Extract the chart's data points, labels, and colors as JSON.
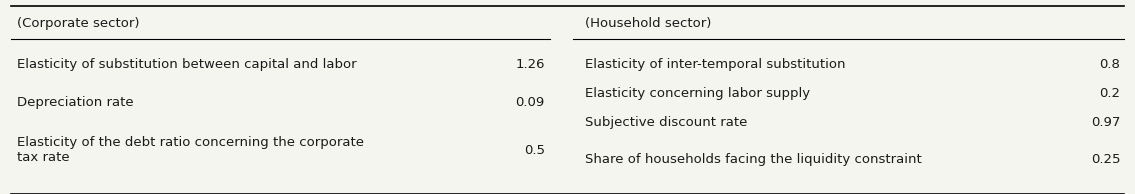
{
  "bg_color": "#f5f5f0",
  "text_color": "#1a1a1a",
  "left_header": "(Corporate sector)",
  "right_header": "(Household sector)",
  "left_rows": [
    [
      "Elasticity of substitution between capital and labor",
      "1.26"
    ],
    [
      "Depreciation rate",
      "0.09"
    ],
    [
      "Elasticity of the debt ratio concerning the corporate\ntax rate",
      "0.5"
    ]
  ],
  "right_rows": [
    [
      "Elasticity of inter-temporal substitution",
      "0.8"
    ],
    [
      "Elasticity concerning labor supply",
      "0.2"
    ],
    [
      "Subjective discount rate",
      "0.97"
    ],
    [
      "Share of households facing the liquidity constraint",
      "0.25"
    ]
  ],
  "font_size": 9.5,
  "header_font_size": 9.5,
  "fig_width": 11.35,
  "fig_height": 1.94,
  "dpi": 100
}
